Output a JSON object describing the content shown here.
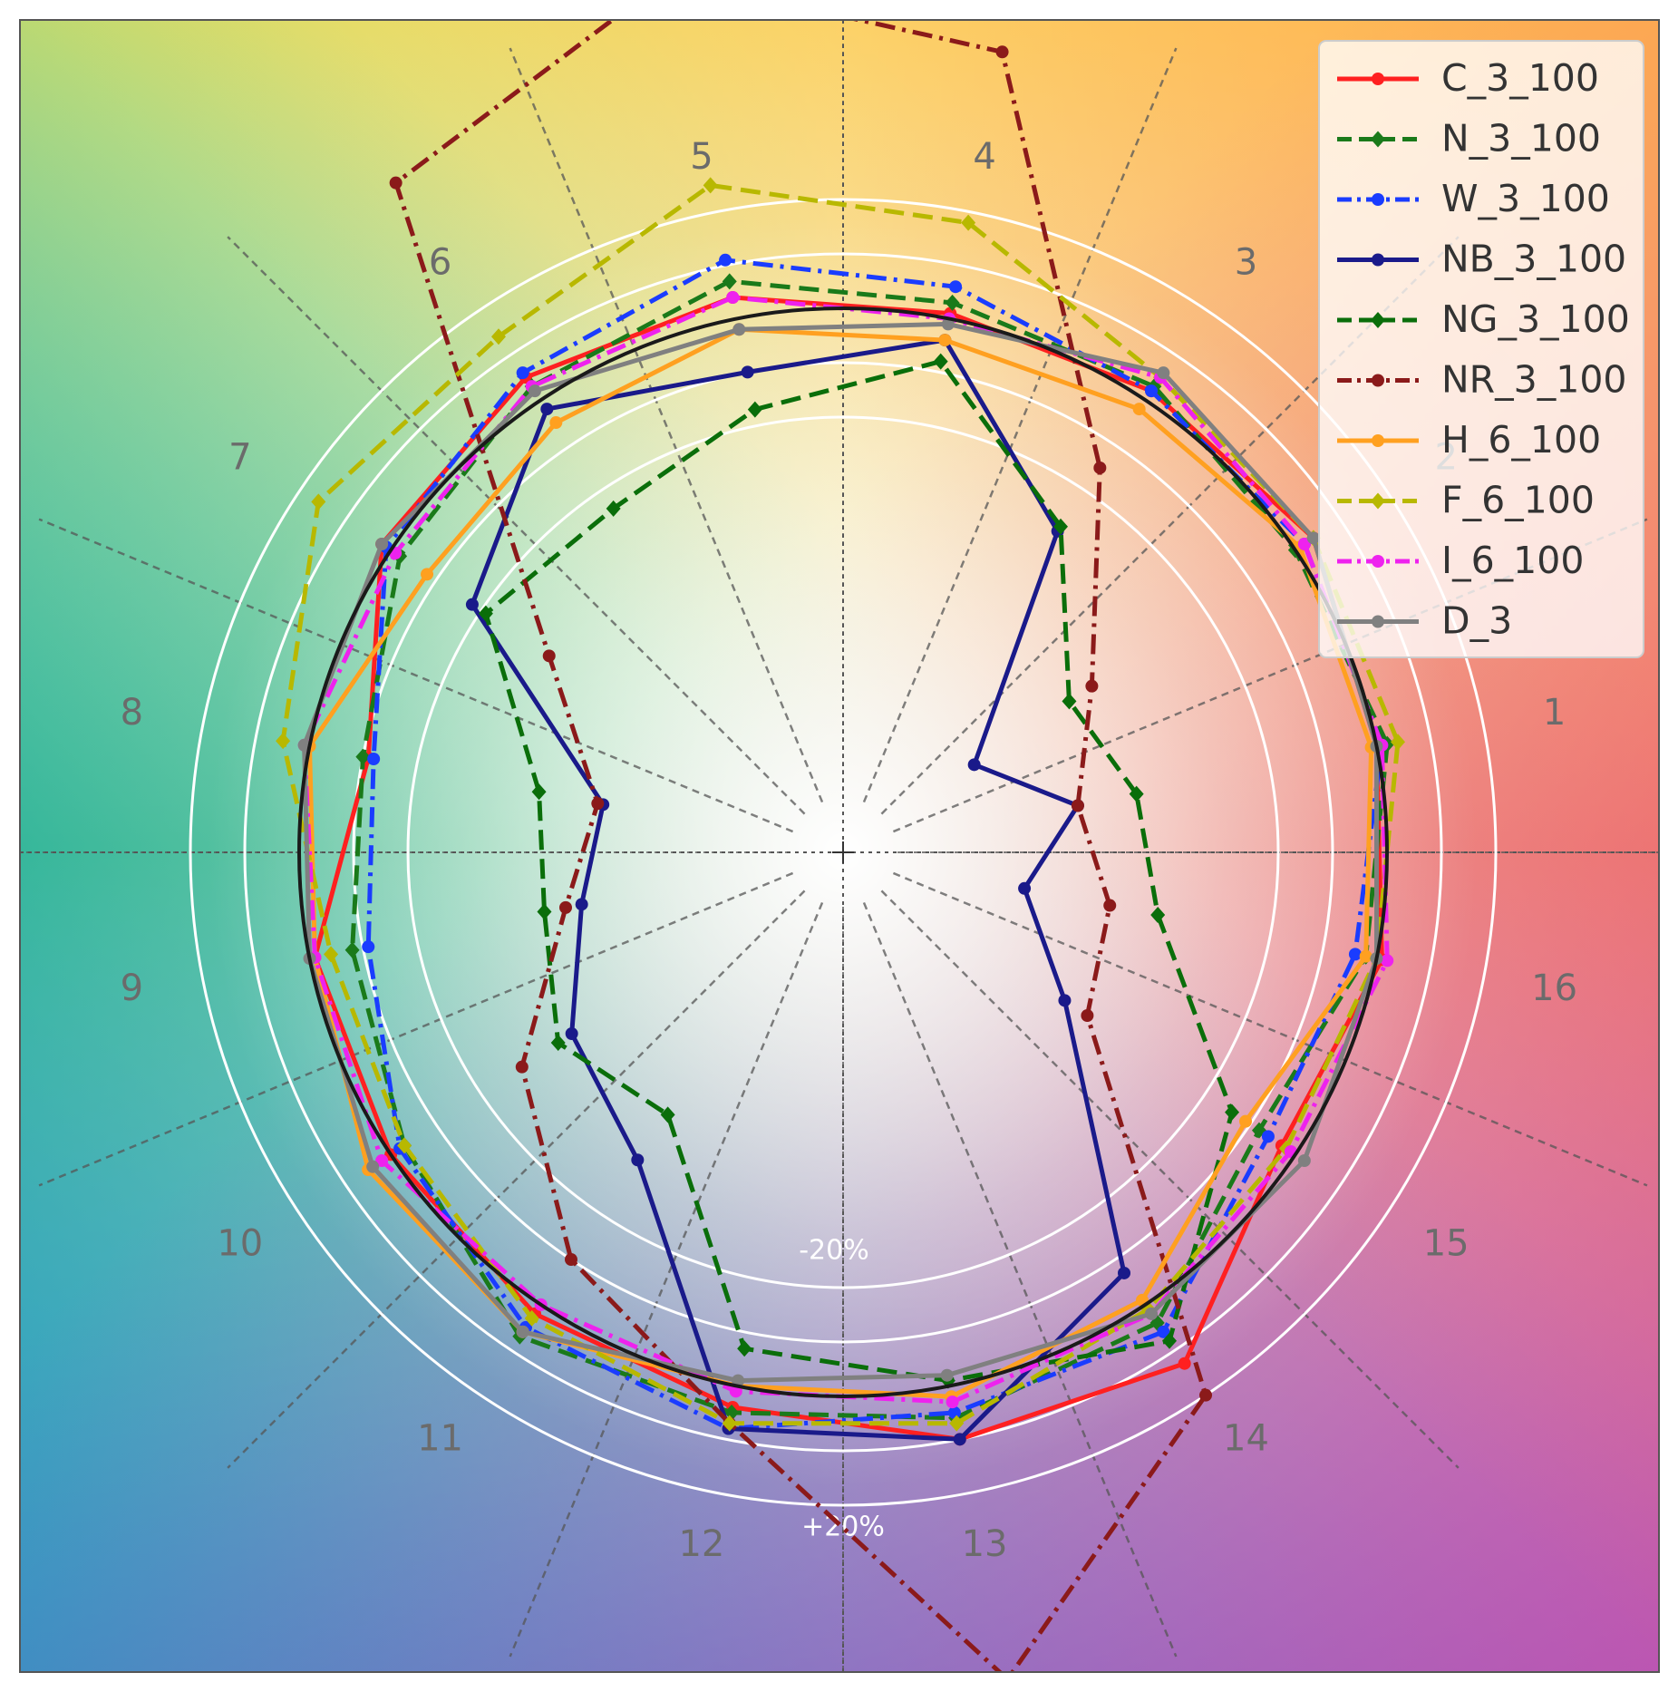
{
  "chart_data": {
    "type": "polar-line",
    "title": "",
    "bin_labels": [
      "1",
      "2",
      "3",
      "4",
      "5",
      "6",
      "7",
      "8",
      "9",
      "10",
      "11",
      "12",
      "13",
      "14",
      "15",
      "16"
    ],
    "ring_labels": [
      "-20%",
      "+20%"
    ],
    "reference_radius": 1.0,
    "rings": [
      0.8,
      0.9,
      1.0,
      1.1,
      1.2
    ],
    "legend_position": "top-right",
    "background": "hue wheel gradient",
    "series": [
      {
        "name": "C_3_100",
        "color": "#ff2020",
        "style": "solid",
        "marker": "circle",
        "r": [
          1.0,
          1.04,
          1.02,
          1.01,
          1.04,
          1.05,
          1.02,
          0.89,
          0.99,
          1.0,
          1.02,
          1.04,
          1.1,
          1.13,
          0.97,
          1.01
        ]
      },
      {
        "name": "N_3_100",
        "color": "#1a7a1a",
        "style": "dashed",
        "marker": "plus",
        "r": [
          1.02,
          1.0,
          1.03,
          1.03,
          1.07,
          1.03,
          0.98,
          0.9,
          0.92,
          0.97,
          1.07,
          1.05,
          1.06,
          1.04,
          0.92,
          0.98
        ]
      },
      {
        "name": "W_3_100",
        "color": "#1a3cff",
        "style": "dashdot",
        "marker": "circle",
        "r": [
          1.01,
          1.02,
          1.02,
          1.06,
          1.11,
          1.06,
          1.01,
          0.88,
          0.89,
          0.98,
          1.05,
          1.08,
          1.05,
          1.06,
          0.94,
          0.96
        ]
      },
      {
        "name": "NB_3_100",
        "color": "#1a1a8a",
        "style": "solid",
        "marker": "circle",
        "r": [
          0.44,
          0.29,
          0.71,
          0.96,
          0.9,
          0.98,
          0.82,
          0.45,
          0.49,
          0.6,
          0.68,
          1.08,
          1.1,
          0.93,
          0.49,
          0.34
        ]
      },
      {
        "name": "NG_3_100",
        "color": "#0a6e0a",
        "style": "dashed",
        "marker": "plus",
        "r": [
          0.55,
          0.5,
          0.72,
          0.92,
          0.83,
          0.76,
          0.79,
          0.57,
          0.56,
          0.63,
          0.58,
          0.93,
          0.99,
          1.08,
          0.86,
          0.59
        ]
      },
      {
        "name": "NR_3_100",
        "color": "#8b1a1a",
        "style": "dashdot",
        "marker": "circle",
        "r": [
          0.44,
          0.55,
          0.85,
          1.5,
          1.64,
          1.48,
          0.65,
          0.46,
          0.52,
          0.71,
          0.9,
          1.07,
          1.55,
          1.2,
          0.54,
          0.5
        ]
      },
      {
        "name": "H_6_100",
        "color": "#ffa020",
        "style": "solid",
        "marker": "circle",
        "r": [
          0.99,
          1.01,
          0.98,
          0.96,
          0.98,
          0.95,
          0.92,
          1.0,
          0.99,
          1.05,
          1.06,
          1.0,
          1.02,
          0.99,
          0.89,
          0.98
        ]
      },
      {
        "name": "F_6_100",
        "color": "#b8b800",
        "style": "dashed",
        "marker": "plus",
        "r": [
          1.04,
          1.04,
          1.05,
          1.18,
          1.25,
          1.14,
          1.16,
          1.05,
          0.96,
          0.97,
          1.03,
          1.07,
          1.07,
          1.01,
          0.98,
          1.0
        ]
      },
      {
        "name": "I_6_100",
        "color": "#ee22ee",
        "style": "dashdot",
        "marker": "circle",
        "r": [
          1.01,
          1.02,
          1.05,
          1.0,
          1.04,
          1.03,
          0.99,
          1.01,
          0.99,
          1.02,
          1.0,
          1.01,
          1.03,
          1.02,
          0.99,
          1.02
        ]
      },
      {
        "name": "D_3",
        "color": "#808080",
        "style": "solid",
        "marker": "circle",
        "r": [
          1.0,
          1.04,
          1.06,
          0.99,
          0.98,
          1.02,
          1.02,
          1.01,
          1.0,
          1.04,
          1.06,
          0.99,
          0.98,
          1.02,
          1.02,
          1.0
        ]
      }
    ]
  }
}
